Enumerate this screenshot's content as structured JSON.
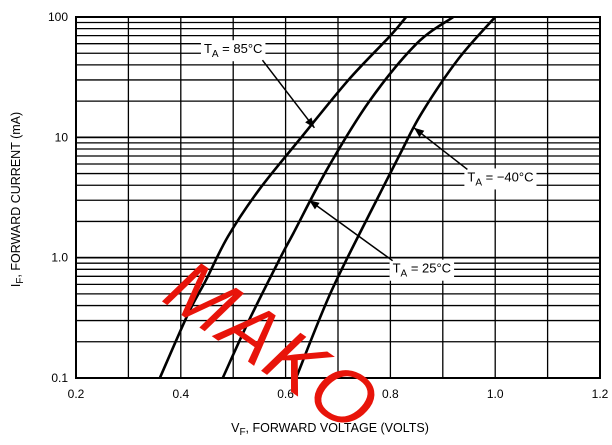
{
  "chart_data": {
    "type": "line",
    "x_axis": {
      "label": "V",
      "label_sub": "F",
      "label_rest": ", FORWARD VOLTAGE (VOLTS)",
      "range": [
        0.2,
        1.2
      ],
      "ticks": [
        0.2,
        0.4,
        0.6,
        0.8,
        1.0,
        1.2
      ],
      "tick_labels": [
        "0.2",
        "0.4",
        "0.6",
        "0.8",
        "1.0",
        "1.2"
      ]
    },
    "y_axis": {
      "label": "I",
      "label_sub": "F",
      "label_rest": ", FORWARD CURRENT (mA)",
      "scale": "log",
      "range": [
        0.1,
        100
      ],
      "ticks": [
        0.1,
        1.0,
        10,
        100
      ],
      "tick_labels": [
        "0.1",
        "1.0",
        "10",
        "100"
      ]
    },
    "grid": true,
    "series": [
      {
        "name": "T_A = 85°C",
        "label_main": "T",
        "label_sub": "A",
        "label_rest": " = 85°C",
        "points": [
          [
            0.36,
            0.1
          ],
          [
            0.415,
            0.35
          ],
          [
            0.448,
            0.65
          ],
          [
            0.49,
            1.5
          ],
          [
            0.55,
            3.7
          ],
          [
            0.63,
            10
          ],
          [
            0.72,
            30
          ],
          [
            0.8,
            70
          ],
          [
            0.83,
            100
          ]
        ]
      },
      {
        "name": "T_A = 25°C",
        "label_main": "T",
        "label_sub": "A",
        "label_rest": " = 25°C",
        "points": [
          [
            0.48,
            0.1
          ],
          [
            0.53,
            0.3
          ],
          [
            0.59,
            1.0
          ],
          [
            0.615,
            1.6
          ],
          [
            0.68,
            5.5
          ],
          [
            0.76,
            20
          ],
          [
            0.85,
            60
          ],
          [
            0.92,
            100
          ]
        ]
      },
      {
        "name": "T_A = −40°C",
        "label_main": "T",
        "label_sub": "A",
        "label_rest": " = −40°C",
        "points": [
          [
            0.62,
            0.1
          ],
          [
            0.685,
            0.5
          ],
          [
            0.76,
            2.3
          ],
          [
            0.82,
            7.5
          ],
          [
            0.86,
            16
          ],
          [
            0.93,
            45
          ],
          [
            1.0,
            100
          ]
        ]
      }
    ],
    "annotations": [
      {
        "series": 0,
        "text_pos": [
          0.5,
          50
        ],
        "arrow_to": [
          0.655,
          12
        ]
      },
      {
        "series": 2,
        "text_pos": [
          1.01,
          4.3
        ],
        "arrow_to": [
          0.845,
          12
        ]
      },
      {
        "series": 1,
        "text_pos": [
          0.86,
          0.75
        ],
        "arrow_to": [
          0.645,
          3.0
        ]
      }
    ],
    "watermark": "MAKO"
  }
}
